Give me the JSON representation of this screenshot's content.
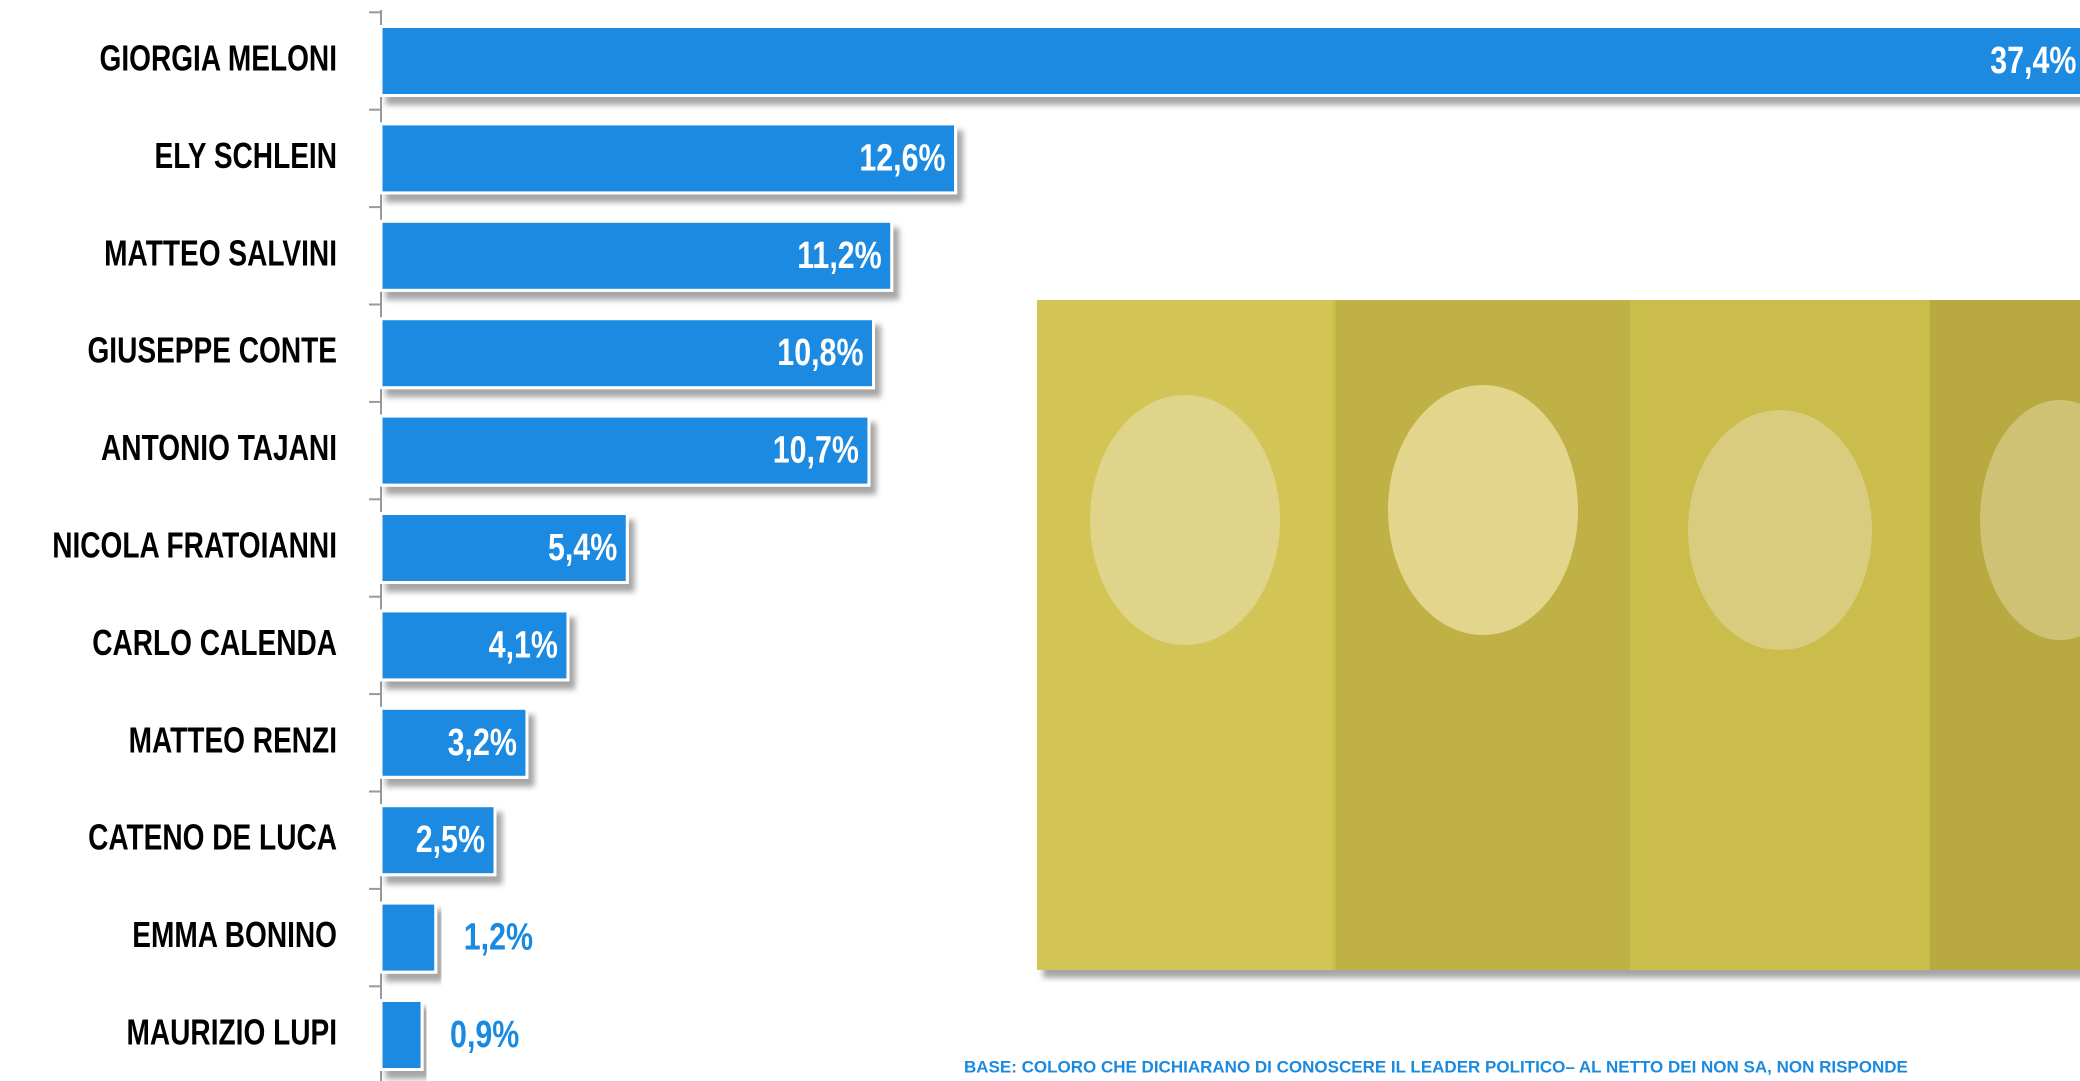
{
  "chart_data": {
    "type": "bar",
    "orientation": "horizontal",
    "categories": [
      "GIORGIA MELONI",
      "ELY SCHLEIN",
      "MATTEO SALVINI",
      "GIUSEPPE CONTE",
      "ANTONIO TAJANI",
      "NICOLA FRATOIANNI",
      "CARLO CALENDA",
      "MATTEO RENZI",
      "CATENO DE LUCA",
      "EMMA BONINO",
      "MAURIZIO LUPI"
    ],
    "values": [
      37.4,
      12.6,
      11.2,
      10.8,
      10.7,
      5.4,
      4.1,
      3.2,
      2.5,
      1.2,
      0.9
    ],
    "value_labels": [
      "37,4%",
      "12,6%",
      "11,2%",
      "10,8%",
      "10,7%",
      "5,4%",
      "4,1%",
      "3,2%",
      "2,5%",
      "1,2%",
      "0,9%"
    ],
    "color": "#1a8ae0",
    "footnote": "BASE: COLORO CHE DICHIARANO DI CONOSCERE IL LEADER POLITICO– AL NETTO DEI NON SA, NON RISPONDE"
  }
}
